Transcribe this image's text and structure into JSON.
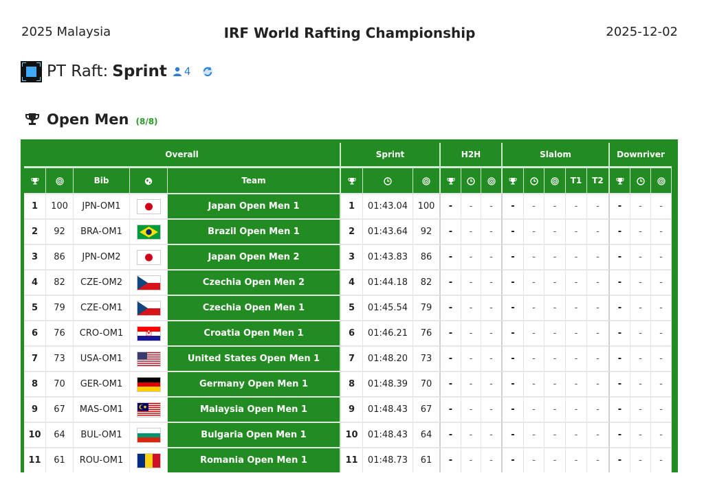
{
  "header": {
    "location": "2025 Malaysia",
    "title": "IRF World Rafting Championship",
    "date": "2025-12-02"
  },
  "subheader": {
    "prefix": "PT Raft:",
    "discipline": "Sprint",
    "user_count": "4",
    "logo_icon": "pt-raft-logo-icon",
    "refresh_icon": "refresh-icon"
  },
  "section": {
    "title": "Open Men",
    "progress": "(8/8)"
  },
  "table": {
    "groups": [
      "Overall",
      "Sprint",
      "H2H",
      "Slalom",
      "Downriver"
    ],
    "columns": {
      "bib": "Bib",
      "team": "Team",
      "t1": "T1",
      "t2": "T2"
    },
    "dash": "-",
    "rows": [
      {
        "rank": "1",
        "points": "100",
        "bib": "JPN-OM1",
        "flag": "jpn",
        "team": "Japan Open Men 1",
        "sprint_rank": "1",
        "sprint_time": "01:43.04",
        "sprint_points": "100"
      },
      {
        "rank": "2",
        "points": "92",
        "bib": "BRA-OM1",
        "flag": "bra",
        "team": "Brazil Open Men 1",
        "sprint_rank": "2",
        "sprint_time": "01:43.64",
        "sprint_points": "92"
      },
      {
        "rank": "3",
        "points": "86",
        "bib": "JPN-OM2",
        "flag": "jpn",
        "team": "Japan Open Men 2",
        "sprint_rank": "3",
        "sprint_time": "01:43.83",
        "sprint_points": "86"
      },
      {
        "rank": "4",
        "points": "82",
        "bib": "CZE-OM2",
        "flag": "cze",
        "team": "Czechia Open Men 2",
        "sprint_rank": "4",
        "sprint_time": "01:44.18",
        "sprint_points": "82"
      },
      {
        "rank": "5",
        "points": "79",
        "bib": "CZE-OM1",
        "flag": "cze",
        "team": "Czechia Open Men 1",
        "sprint_rank": "5",
        "sprint_time": "01:45.54",
        "sprint_points": "79"
      },
      {
        "rank": "6",
        "points": "76",
        "bib": "CRO-OM1",
        "flag": "cro",
        "team": "Croatia Open Men 1",
        "sprint_rank": "6",
        "sprint_time": "01:46.21",
        "sprint_points": "76"
      },
      {
        "rank": "7",
        "points": "73",
        "bib": "USA-OM1",
        "flag": "usa",
        "team": "United States Open Men 1",
        "sprint_rank": "7",
        "sprint_time": "01:48.20",
        "sprint_points": "73"
      },
      {
        "rank": "8",
        "points": "70",
        "bib": "GER-OM1",
        "flag": "ger",
        "team": "Germany Open Men 1",
        "sprint_rank": "8",
        "sprint_time": "01:48.39",
        "sprint_points": "70"
      },
      {
        "rank": "9",
        "points": "67",
        "bib": "MAS-OM1",
        "flag": "mas",
        "team": "Malaysia Open Men 1",
        "sprint_rank": "9",
        "sprint_time": "01:48.43",
        "sprint_points": "67"
      },
      {
        "rank": "10",
        "points": "64",
        "bib": "BUL-OM1",
        "flag": "bul",
        "team": "Bulgaria Open Men 1",
        "sprint_rank": "10",
        "sprint_time": "01:48.43",
        "sprint_points": "64"
      },
      {
        "rank": "11",
        "points": "61",
        "bib": "ROU-OM1",
        "flag": "rou",
        "team": "Romania Open Men 1",
        "sprint_rank": "11",
        "sprint_time": "01:48.73",
        "sprint_points": "61"
      }
    ]
  },
  "colors": {
    "primary_green": "#228b22",
    "accent_blue": "#2a7fd4",
    "progress_green": "#2a9a2a"
  }
}
